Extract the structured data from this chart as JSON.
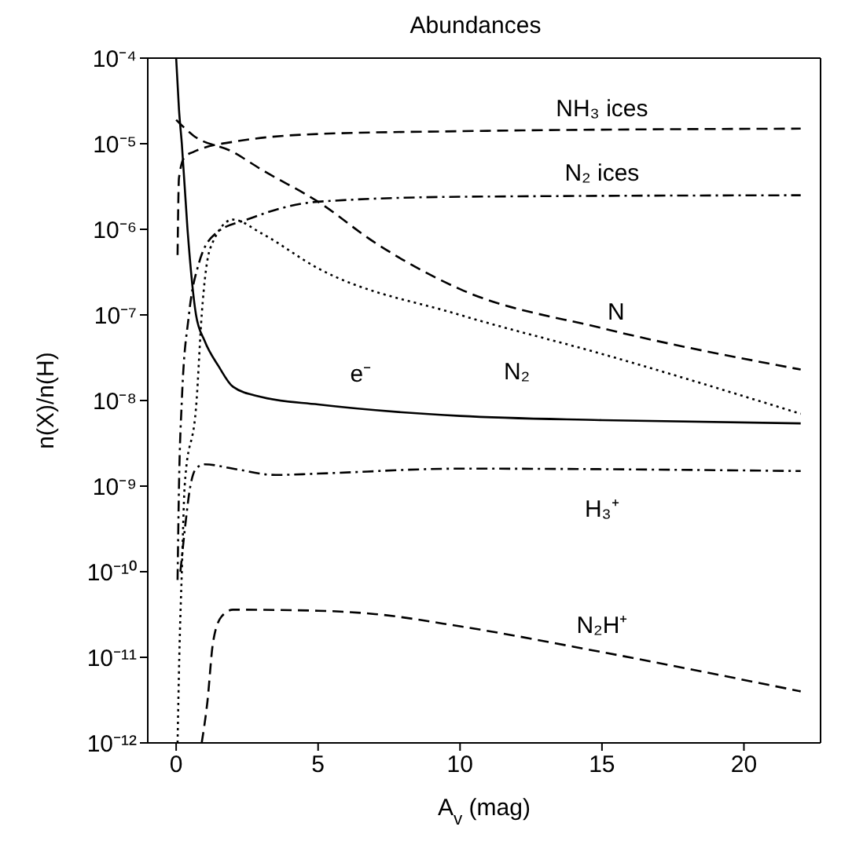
{
  "chart_data": {
    "type": "line",
    "title": "Abundances",
    "xlabel": "A$_{v}$ (mag)",
    "ylabel": "n(X)/n(H)",
    "log": "y",
    "grid": false,
    "legend": false,
    "marker": "none",
    "xlim": [
      -1,
      22.7
    ],
    "xticks": [
      0,
      5,
      10,
      15,
      20
    ],
    "ylim": [
      1e-12,
      0.0001
    ],
    "yticks": [
      {
        "value": 1e-12,
        "label": "10⁻¹²"
      },
      {
        "value": 1e-11,
        "label": "10⁻¹¹"
      },
      {
        "value": 1e-10,
        "label": "10⁻¹⁰"
      },
      {
        "value": 1e-09,
        "label": "10⁻⁹"
      },
      {
        "value": 1e-08,
        "label": "10⁻⁸"
      },
      {
        "value": 1e-07,
        "label": "10⁻⁷"
      },
      {
        "value": 1e-06,
        "label": "10⁻⁶"
      },
      {
        "value": 1e-05,
        "label": "10⁻⁵"
      },
      {
        "value": 0.0001,
        "label": "10⁻⁴"
      }
    ],
    "series": [
      {
        "name": "NH₃ ices",
        "color": "#000000",
        "line_style": "dashed",
        "x": [
          0.05,
          0.1,
          0.3,
          0.6,
          1,
          2,
          5,
          10,
          22
        ],
        "values": [
          5e-07,
          4e-06,
          7e-06,
          8e-06,
          9e-06,
          1.05e-05,
          1.3e-05,
          1.4e-05,
          1.5e-05
        ]
      },
      {
        "name": "N₂ ices",
        "color": "#000000",
        "line_style": "dashdot",
        "x": [
          0.05,
          0.1,
          0.2,
          0.45,
          0.8,
          1.4,
          2.5,
          5,
          10,
          22
        ],
        "values": [
          8e-11,
          1e-09,
          1e-08,
          1e-07,
          4e-07,
          9e-07,
          1.3e-06,
          2.1e-06,
          2.4e-06,
          2.5e-06
        ]
      },
      {
        "name": "N",
        "color": "#000000",
        "line_style": "dashed",
        "x": [
          0,
          0.6,
          2,
          3,
          5,
          7,
          10,
          15,
          22
        ],
        "values": [
          1.9e-05,
          1.25e-05,
          8e-06,
          5e-06,
          2.1e-06,
          7e-07,
          2e-07,
          7e-08,
          2.3e-08
        ]
      },
      {
        "name": "N₂",
        "color": "#000000",
        "line_style": "dotted",
        "x": [
          0.05,
          0.11,
          0.2,
          0.3,
          0.72,
          0.9,
          1.2,
          2,
          3,
          5,
          10,
          15,
          22
        ],
        "values": [
          1e-12,
          1e-11,
          1e-10,
          1e-09,
          1e-08,
          1e-07,
          6e-07,
          1.3e-06,
          9e-07,
          3.5e-07,
          1e-07,
          3.5e-08,
          7e-09
        ]
      },
      {
        "name": "e⁻",
        "color": "#000000",
        "line_style": "solid",
        "x": [
          0,
          0.1,
          0.2,
          0.4,
          0.7,
          1,
          1.5,
          2,
          3,
          5,
          10,
          15,
          22
        ],
        "values": [
          0.0001,
          2.5e-05,
          1e-05,
          1e-06,
          1e-07,
          5e-08,
          2.5e-08,
          1.45e-08,
          1.1e-08,
          9e-09,
          6.6e-09,
          5.9e-09,
          5.4e-09
        ]
      },
      {
        "name": "H₃⁺",
        "color": "#000000",
        "line_style": "dashdot",
        "x": [
          0.15,
          0.3,
          0.5,
          0.7,
          1,
          2,
          3.5,
          5,
          10,
          22
        ],
        "values": [
          1e-10,
          3e-10,
          1e-09,
          1.6e-09,
          1.8e-09,
          1.6e-09,
          1.35e-09,
          1.4e-09,
          1.6e-09,
          1.5e-09
        ]
      },
      {
        "name": "N₂H⁺",
        "color": "#000000",
        "line_style": "dashed",
        "x": [
          0.9,
          1.1,
          1.3,
          1.6,
          2,
          5,
          7,
          10,
          15,
          22
        ],
        "values": [
          1e-12,
          3e-12,
          1.5e-11,
          3e-11,
          3.6e-11,
          3.5e-11,
          3.2e-11,
          2.3e-11,
          1.15e-11,
          4e-12
        ]
      }
    ]
  }
}
